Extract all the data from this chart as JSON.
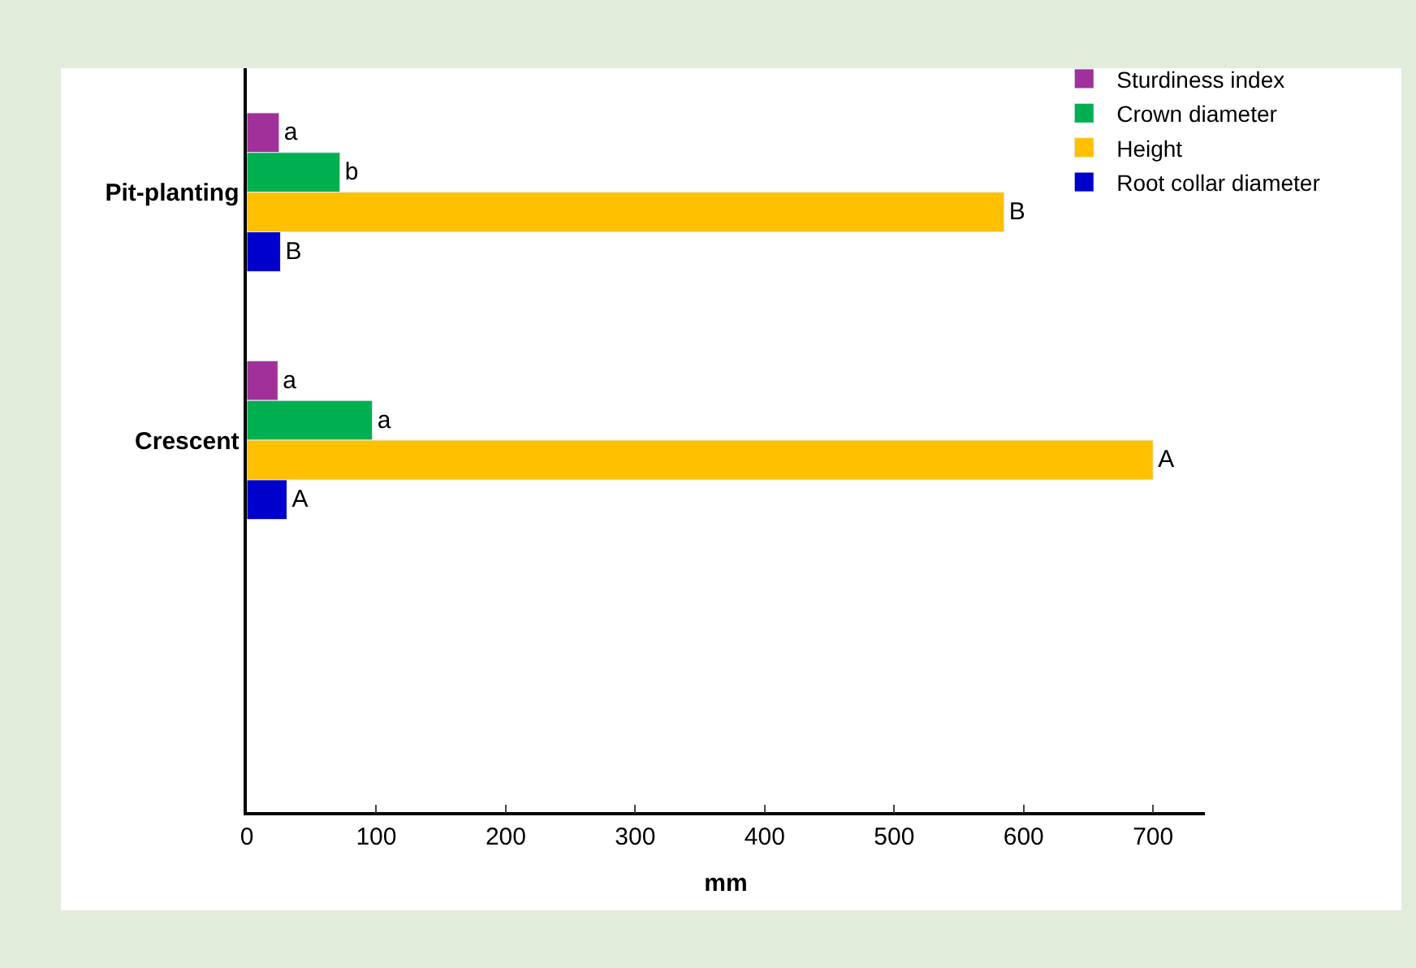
{
  "chart_data": {
    "type": "bar",
    "orientation": "horizontal",
    "xlabel": "mm",
    "categories": [
      "Pit-planting",
      "Crescent",
      null
    ],
    "series": [
      {
        "name": "Sturdiness index",
        "color": "#a0309a",
        "values": [
          25,
          24,
          null
        ],
        "value_labels": [
          "a",
          "a",
          null
        ]
      },
      {
        "name": "Crown diameter",
        "color": "#00b050",
        "values": [
          72,
          97,
          null
        ],
        "value_labels": [
          "b",
          "a",
          null
        ]
      },
      {
        "name": "Height",
        "color": "#ffc000",
        "values": [
          585,
          700,
          null
        ],
        "value_labels": [
          "B",
          "A",
          null
        ]
      },
      {
        "name": "Root collar diameter",
        "color": "#0000cc",
        "values": [
          26,
          31,
          null
        ],
        "value_labels": [
          "B",
          "A",
          null
        ]
      }
    ],
    "xlim": [
      0,
      740
    ],
    "xticks": [
      0,
      100,
      200,
      300,
      400,
      500,
      600,
      700
    ],
    "legend": "top right"
  }
}
